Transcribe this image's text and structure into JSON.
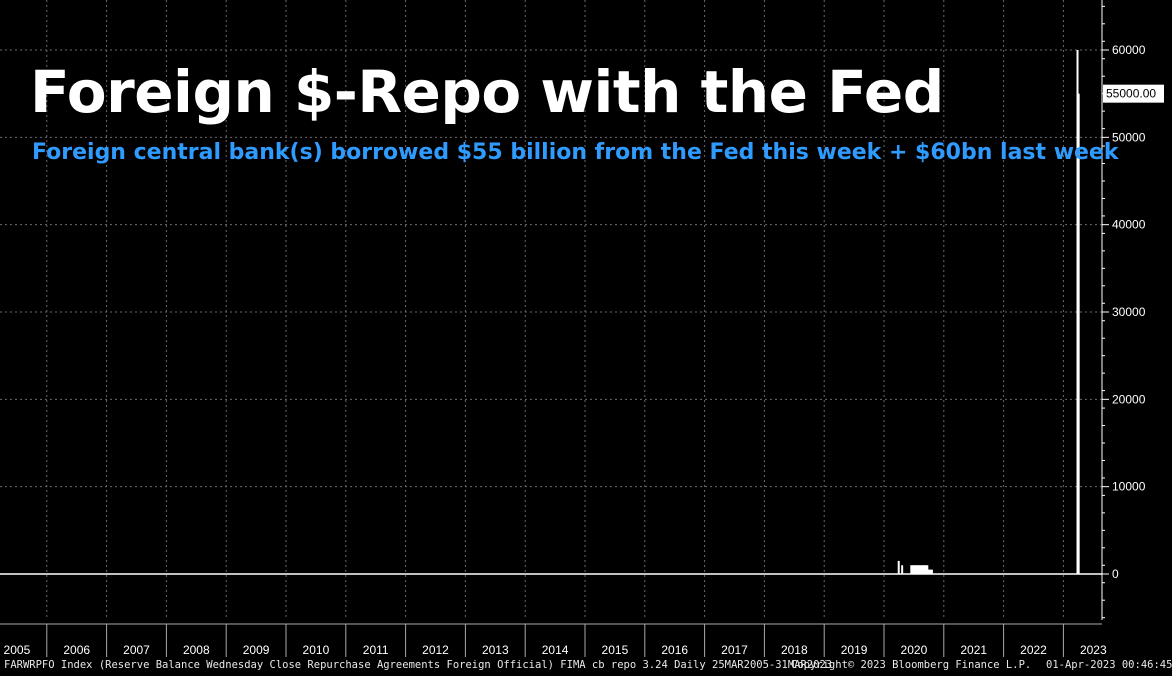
{
  "chart_data": {
    "type": "bar",
    "title": "Foreign $-Repo with the Fed",
    "subtitle": "Foreign central bank(s) borrowed $55 billion from the Fed this week + $60bn last week",
    "yticks": [
      0,
      10000,
      20000,
      30000,
      40000,
      50000,
      60000
    ],
    "ytick_labels": [
      "0",
      "10000",
      "20000",
      "30000",
      "40000",
      "50000",
      "60000"
    ],
    "ylim": [
      -5000,
      66000
    ],
    "years": [
      "2005",
      "2006",
      "2007",
      "2008",
      "2009",
      "2010",
      "2011",
      "2012",
      "2013",
      "2014",
      "2015",
      "2016",
      "2017",
      "2018",
      "2019",
      "2020",
      "2021",
      "2022",
      "2023"
    ],
    "last_value_label": "55000.00",
    "grid": true,
    "series": [
      {
        "values": [
          {
            "x": "2020-03-25",
            "y": 1500
          },
          {
            "x": "2020-04-15",
            "y": 1000
          },
          {
            "x": "2020-06-10",
            "y": 1000
          },
          {
            "x": "2020-06-17",
            "y": 1000
          },
          {
            "x": "2020-06-24",
            "y": 1000
          },
          {
            "x": "2020-07-01",
            "y": 1000
          },
          {
            "x": "2020-07-08",
            "y": 1000
          },
          {
            "x": "2020-07-15",
            "y": 1000
          },
          {
            "x": "2020-07-22",
            "y": 1000
          },
          {
            "x": "2020-07-29",
            "y": 1000
          },
          {
            "x": "2020-08-05",
            "y": 1000
          },
          {
            "x": "2020-08-12",
            "y": 1000
          },
          {
            "x": "2020-08-19",
            "y": 1000
          },
          {
            "x": "2020-08-26",
            "y": 1000
          },
          {
            "x": "2020-09-02",
            "y": 1000
          },
          {
            "x": "2020-09-09",
            "y": 1000
          },
          {
            "x": "2020-09-16",
            "y": 1000
          },
          {
            "x": "2020-09-23",
            "y": 500
          },
          {
            "x": "2020-09-30",
            "y": 500
          },
          {
            "x": "2020-10-07",
            "y": 500
          },
          {
            "x": "2020-10-14",
            "y": 500
          },
          {
            "x": "2023-03-22",
            "y": 60000
          },
          {
            "x": "2023-03-29",
            "y": 55000
          }
        ]
      }
    ]
  },
  "footer": {
    "left": "FARWRPFO Index (Reserve Balance Wednesday Close Repurchase Agreements Foreign Official) FIMA cb repo 3.24  Daily 25MAR2005-31MAR2023",
    "center": "Copyright© 2023 Bloomberg Finance L.P.",
    "right": "01-Apr-2023 00:46:45"
  },
  "colors": {
    "background": "#000000",
    "grid": "#6b6b6b",
    "bar": "#ffffff",
    "subtitle": "#2f9bff"
  }
}
